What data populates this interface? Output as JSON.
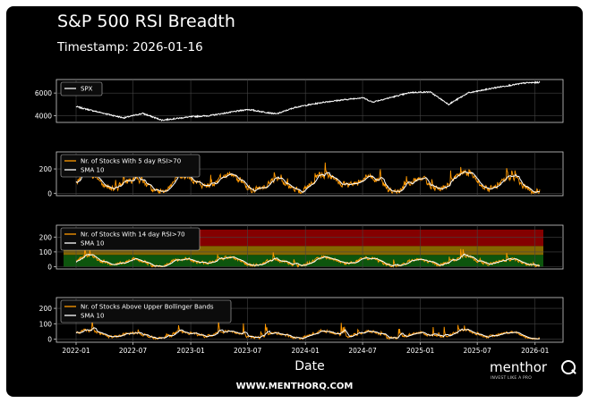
{
  "header": {
    "title": "S&P 500 RSI Breadth",
    "timestamp": "Timestamp: 2026-01-16"
  },
  "footer": {
    "url": "WWW.MENTHORQ.COM",
    "logo_word": "menthor",
    "logo_tagline": "INVEST LIKE A PRO"
  },
  "colors": {
    "background": "#000000",
    "price_line": "#ffffff",
    "count_line": "#ff9900",
    "sma_line": "#ffffff",
    "zone_high": "#8b0000",
    "zone_mid": "#8b6b00",
    "zone_low": "#0e5a0e"
  },
  "chart_data": [
    {
      "type": "line",
      "panel": "spx",
      "x_range": [
        "2022-01-01",
        "2026-01-16"
      ],
      "ylim": [
        3400,
        7200
      ],
      "yticks": [
        4000,
        6000
      ],
      "grid": true,
      "legend": "top-left",
      "series": [
        {
          "name": "SPX",
          "x": [
            "2022-01",
            "2022-03",
            "2022-06",
            "2022-08",
            "2022-10",
            "2023-01",
            "2023-03",
            "2023-07",
            "2023-10",
            "2023-12",
            "2024-03",
            "2024-07",
            "2024-08",
            "2024-12",
            "2025-02",
            "2025-04",
            "2025-06",
            "2025-09",
            "2025-12",
            "2026-01"
          ],
          "values": [
            4800,
            4400,
            3800,
            4200,
            3600,
            3900,
            4000,
            4550,
            4150,
            4750,
            5200,
            5600,
            5200,
            6050,
            6100,
            5000,
            6000,
            6500,
            6900,
            6950
          ]
        }
      ]
    },
    {
      "type": "line",
      "panel": "rsi5",
      "ylim": [
        -20,
        340
      ],
      "yticks": [
        0,
        200
      ],
      "grid": true,
      "legend": "top-left",
      "series": [
        {
          "name": "Nr. of Stocks With 5 day RSI>70",
          "color": "#ff9900"
        },
        {
          "name": "SMA 10",
          "color": "#ffffff"
        }
      ]
    },
    {
      "type": "line",
      "panel": "rsi14",
      "ylim": [
        -15,
        280
      ],
      "yticks": [
        0,
        100,
        200
      ],
      "grid": true,
      "legend": "top-left",
      "zones": [
        {
          "from": 0,
          "to": 80,
          "color": "green"
        },
        {
          "from": 80,
          "to": 140,
          "color": "yellow"
        },
        {
          "from": 140,
          "to": 250,
          "color": "red"
        }
      ],
      "series": [
        {
          "name": "Nr. of Stocks With 14 day RSI>70",
          "color": "#ff9900"
        },
        {
          "name": "SMA 10",
          "color": "#ffffff"
        }
      ]
    },
    {
      "type": "line",
      "panel": "boll",
      "ylim": [
        -20,
        270
      ],
      "yticks": [
        0,
        100,
        200
      ],
      "grid": true,
      "legend": "top-left",
      "series": [
        {
          "name": "Nr. of Stocks Above Upper Bollinger Bands",
          "color": "#ff9900"
        },
        {
          "name": "SMA 10",
          "color": "#ffffff"
        }
      ]
    },
    {
      "shared_x_axis": true,
      "xlabel": "Date",
      "xticks": [
        "2022-01",
        "2022-07",
        "2023-01",
        "2023-07",
        "2024-01",
        "2024-07",
        "2025-01",
        "2025-07",
        "2026-01"
      ]
    }
  ]
}
